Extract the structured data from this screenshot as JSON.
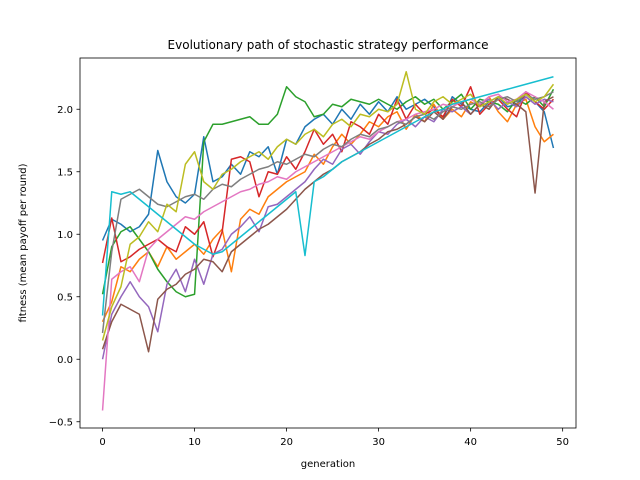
{
  "chart_data": {
    "type": "line",
    "title": "Evolutionary path of stochastic strategy performance",
    "xlabel": "generation",
    "ylabel": "fitness (mean payoff per round)",
    "xlim": [
      -2.45,
      51.45
    ],
    "ylim": [
      -0.55,
      2.41
    ],
    "xticks": [
      0,
      10,
      20,
      30,
      40,
      50
    ],
    "yticks": [
      -0.5,
      0.0,
      0.5,
      1.0,
      1.5,
      2.0
    ],
    "xtick_labels": [
      "0",
      "10",
      "20",
      "30",
      "40",
      "50"
    ],
    "ytick_labels": [
      "−0.5",
      "0.0",
      "0.5",
      "1.0",
      "1.5",
      "2.0"
    ],
    "grid": false,
    "n_generations": 50,
    "colors": [
      "#1f77b4",
      "#ff7f0e",
      "#2ca02c",
      "#d62728",
      "#9467bd",
      "#8c564b",
      "#e377c2",
      "#7f7f7f",
      "#bcbd22",
      "#17becf"
    ],
    "series": [
      {
        "values": [
          0.95,
          1.12,
          1.08,
          1.02,
          1.06,
          1.16,
          1.67,
          1.42,
          1.3,
          1.25,
          1.32,
          1.78,
          1.42,
          1.46,
          1.56,
          1.48,
          1.66,
          1.62,
          1.7,
          1.48,
          1.76,
          1.72,
          1.86,
          1.92,
          1.96,
          1.88,
          2.0,
          1.92,
          2.04,
          1.96,
          2.06,
          1.98,
          2.1,
          2.0,
          2.04,
          2.08,
          2.02,
          1.92,
          2.1,
          2.04,
          2.0,
          1.98,
          2.06,
          2.1,
          2.02,
          2.04,
          2.12,
          2.06,
          1.98,
          1.69
        ]
      },
      {
        "values": [
          0.3,
          0.46,
          0.74,
          0.7,
          0.8,
          0.86,
          0.74,
          0.9,
          0.8,
          0.86,
          0.92,
          0.84,
          0.96,
          1.04,
          0.7,
          1.12,
          1.2,
          1.16,
          1.3,
          1.36,
          1.42,
          1.46,
          1.5,
          1.64,
          1.56,
          1.7,
          1.8,
          1.72,
          1.8,
          1.9,
          1.86,
          1.94,
          1.98,
          1.84,
          1.96,
          1.9,
          2.04,
          1.92,
          2.0,
          1.94,
          2.06,
          2.02,
          2.1,
          1.98,
          1.9,
          2.04,
          2.08,
          1.86,
          1.74,
          1.8
        ]
      },
      {
        "values": [
          0.52,
          0.9,
          1.02,
          1.06,
          0.96,
          0.86,
          0.72,
          0.62,
          0.54,
          0.5,
          0.52,
          1.74,
          1.88,
          1.88,
          1.9,
          1.92,
          1.94,
          1.88,
          1.88,
          1.96,
          2.18,
          2.1,
          2.06,
          1.94,
          1.96,
          2.04,
          2.02,
          2.08,
          2.06,
          2.04,
          2.08,
          2.04,
          2.0,
          2.06,
          2.1,
          2.04,
          2.08,
          2.0,
          2.06,
          2.12,
          2.0,
          2.08,
          2.06,
          2.04,
          1.98,
          2.08,
          2.04,
          2.1,
          2.02,
          2.16
        ]
      },
      {
        "values": [
          0.77,
          1.13,
          0.78,
          0.82,
          0.88,
          0.92,
          0.96,
          0.9,
          0.86,
          1.06,
          1.0,
          1.1,
          0.82,
          1.02,
          1.6,
          1.62,
          1.58,
          1.3,
          1.5,
          1.48,
          1.62,
          1.52,
          1.66,
          1.84,
          1.72,
          1.8,
          1.66,
          1.9,
          1.86,
          1.8,
          1.96,
          1.88,
          2.08,
          1.92,
          2.04,
          1.96,
          2.0,
          1.94,
          2.08,
          2.02,
          2.18,
          1.96,
          2.04,
          2.08,
          2.0,
          1.94,
          2.14,
          2.06,
          2.0,
          2.08
        ]
      },
      {
        "values": [
          0.0,
          0.36,
          0.5,
          0.62,
          0.5,
          0.42,
          0.22,
          0.6,
          0.72,
          0.54,
          0.8,
          0.6,
          0.84,
          0.88,
          1.0,
          1.06,
          1.14,
          1.02,
          1.22,
          1.24,
          1.3,
          1.36,
          1.42,
          1.52,
          1.6,
          1.56,
          1.68,
          1.72,
          1.64,
          1.74,
          1.82,
          1.8,
          1.88,
          1.92,
          1.86,
          1.94,
          1.9,
          2.0,
          1.98,
          2.02,
          1.96,
          2.04,
          2.08,
          2.0,
          2.06,
          2.02,
          2.1,
          2.04,
          2.08,
          2.06
        ]
      },
      {
        "values": [
          0.08,
          0.3,
          0.44,
          0.4,
          0.36,
          0.06,
          0.48,
          0.56,
          0.6,
          0.68,
          0.72,
          0.8,
          0.78,
          0.7,
          0.86,
          0.92,
          0.98,
          1.04,
          1.08,
          1.14,
          1.2,
          1.28,
          1.36,
          1.42,
          1.48,
          1.52,
          1.58,
          1.62,
          1.66,
          1.72,
          1.76,
          1.82,
          1.84,
          1.88,
          1.94,
          1.9,
          1.98,
          1.92,
          2.02,
          2.06,
          1.96,
          2.04,
          2.0,
          2.1,
          2.08,
          2.04,
          1.98,
          1.33,
          2.06,
          2.1
        ]
      },
      {
        "values": [
          -0.41,
          0.64,
          0.7,
          0.74,
          0.62,
          0.88,
          0.96,
          1.02,
          1.08,
          1.14,
          1.12,
          1.18,
          1.22,
          1.26,
          1.3,
          1.34,
          1.36,
          1.4,
          1.42,
          1.46,
          1.44,
          1.5,
          1.54,
          1.58,
          1.62,
          1.66,
          1.7,
          1.74,
          1.78,
          1.76,
          1.82,
          1.86,
          1.9,
          1.92,
          1.96,
          1.98,
          2.0,
          2.04,
          2.02,
          2.06,
          2.08,
          2.04,
          2.1,
          2.12,
          2.06,
          2.08,
          2.14,
          2.1,
          2.06,
          2.0
        ]
      },
      {
        "values": [
          0.21,
          0.86,
          1.28,
          1.32,
          1.36,
          1.3,
          1.24,
          1.22,
          1.26,
          1.3,
          1.32,
          1.28,
          1.36,
          1.4,
          1.38,
          1.44,
          1.48,
          1.52,
          1.54,
          1.58,
          1.56,
          1.6,
          1.64,
          1.62,
          1.68,
          1.72,
          1.7,
          1.76,
          1.8,
          1.78,
          1.84,
          1.86,
          1.9,
          1.88,
          1.94,
          1.96,
          1.92,
          1.98,
          2.02,
          2.0,
          2.04,
          2.06,
          2.02,
          2.08,
          2.1,
          2.06,
          2.12,
          2.08,
          2.1,
          2.14
        ]
      },
      {
        "values": [
          0.15,
          0.42,
          0.58,
          0.92,
          0.98,
          1.1,
          1.02,
          1.24,
          1.18,
          1.56,
          1.66,
          1.42,
          1.36,
          1.48,
          1.52,
          1.58,
          1.62,
          1.66,
          1.6,
          1.7,
          1.76,
          1.72,
          1.8,
          1.84,
          1.78,
          1.88,
          1.92,
          1.86,
          1.96,
          1.94,
          2.0,
          1.98,
          2.04,
          2.3,
          2.0,
          1.96,
          2.06,
          2.1,
          2.04,
          2.08,
          2.12,
          2.02,
          2.06,
          2.1,
          2.04,
          2.08,
          2.12,
          2.06,
          2.1,
          2.2
        ]
      },
      {
        "values": [
          0.35,
          1.34,
          1.32,
          1.34,
          1.28,
          1.22,
          1.16,
          1.1,
          1.04,
          0.98,
          0.92,
          0.88,
          0.84,
          0.86,
          0.92,
          0.98,
          1.04,
          1.1,
          1.16,
          1.22,
          1.28,
          1.34,
          0.83,
          1.42,
          1.46,
          1.52,
          1.58,
          1.62,
          1.66,
          1.7,
          1.74,
          1.78,
          1.82,
          1.86,
          1.9,
          1.94,
          1.98,
          2.0,
          2.04,
          2.06,
          2.08,
          2.1,
          2.12,
          2.14,
          2.16,
          2.18,
          2.2,
          2.22,
          2.24,
          2.26
        ]
      }
    ]
  }
}
